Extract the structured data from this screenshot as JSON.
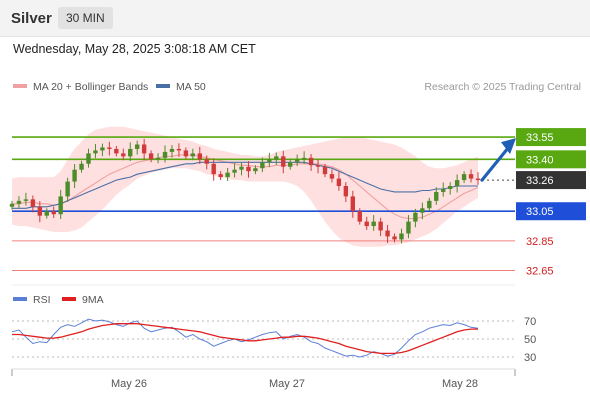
{
  "header": {
    "symbol": "Silver",
    "timeframe": "30 MIN"
  },
  "timestamp": "Wednesday, May 28, 2025 3:08:18 AM CET",
  "credit": "Research © 2025 Trading Central",
  "colors": {
    "up_candle": "#4c8c2a",
    "down_candle": "#d03a3a",
    "bollinger_fill": "#ffdada",
    "ma20": "#f0a0a0",
    "ma50": "#4a6fa5",
    "resistance": "#5aa811",
    "support_blue": "#1f4ed8",
    "support_red": "#f08080",
    "rsi": "#5b7fd6",
    "rsi_ma": "#e02020",
    "price_label": "#333333",
    "arrow": "#1f5fb5"
  },
  "chart_data": [
    {
      "type": "line",
      "panel": "price",
      "legend": [
        {
          "name": "MA 20 + Bollinger Bands",
          "color": "#f0a0a0"
        },
        {
          "name": "MA 50",
          "color": "#4a6fa5"
        }
      ],
      "x_ticks": [
        "May 26",
        "May 27",
        "May 28"
      ],
      "ylim": [
        32.62,
        33.8
      ],
      "current_price": 33.26,
      "levels": [
        {
          "value": 33.55,
          "label": "33.55",
          "kind": "resistance"
        },
        {
          "value": 33.4,
          "label": "33.40",
          "kind": "resistance"
        },
        {
          "value": 33.05,
          "label": "33.05",
          "kind": "pivot"
        },
        {
          "value": 32.85,
          "label": "32.85",
          "kind": "support"
        },
        {
          "value": 32.65,
          "label": "32.65",
          "kind": "support"
        }
      ],
      "forecast_target": 33.55,
      "close": [
        33.1,
        33.12,
        33.13,
        33.08,
        33.02,
        33.05,
        33.03,
        33.15,
        33.25,
        33.33,
        33.37,
        33.44,
        33.46,
        33.48,
        33.47,
        33.44,
        33.42,
        33.47,
        33.5,
        33.44,
        33.4,
        33.41,
        33.45,
        33.47,
        33.46,
        33.42,
        33.44,
        33.4,
        33.37,
        33.3,
        33.28,
        33.31,
        33.33,
        33.35,
        33.32,
        33.34,
        33.38,
        33.4,
        33.42,
        33.35,
        33.38,
        33.4,
        33.41,
        33.36,
        33.35,
        33.3,
        33.27,
        33.22,
        33.15,
        33.05,
        32.98,
        32.95,
        32.98,
        32.92,
        32.88,
        32.86,
        32.9,
        32.98,
        33.04,
        33.07,
        33.12,
        33.18,
        33.2,
        33.22,
        33.26,
        33.3,
        33.27,
        33.26
      ],
      "ma20": [
        33.1,
        33.1,
        33.11,
        33.11,
        33.1,
        33.1,
        33.09,
        33.1,
        33.12,
        33.15,
        33.18,
        33.21,
        33.24,
        33.27,
        33.3,
        33.32,
        33.34,
        33.36,
        33.38,
        33.39,
        33.4,
        33.41,
        33.42,
        33.42,
        33.43,
        33.43,
        33.43,
        33.42,
        33.41,
        33.4,
        33.39,
        33.38,
        33.37,
        33.36,
        33.36,
        33.35,
        33.35,
        33.35,
        33.36,
        33.36,
        33.36,
        33.37,
        33.37,
        33.37,
        33.37,
        33.36,
        33.35,
        33.33,
        33.3,
        33.26,
        33.22,
        33.18,
        33.14,
        33.1,
        33.06,
        33.03,
        33.01,
        33.0,
        33.0,
        33.01,
        33.03,
        33.05,
        33.08,
        33.11,
        33.14,
        33.17,
        33.19,
        33.21
      ],
      "ma50": [
        33.07,
        33.07,
        33.07,
        33.08,
        33.08,
        33.08,
        33.09,
        33.1,
        33.12,
        33.14,
        33.16,
        33.18,
        33.2,
        33.22,
        33.24,
        33.26,
        33.27,
        33.28,
        33.3,
        33.31,
        33.32,
        33.33,
        33.34,
        33.35,
        33.36,
        33.37,
        33.37,
        33.38,
        33.38,
        33.38,
        33.38,
        33.38,
        33.38,
        33.38,
        33.38,
        33.38,
        33.38,
        33.38,
        33.38,
        33.38,
        33.38,
        33.38,
        33.38,
        33.37,
        33.36,
        33.35,
        33.34,
        33.32,
        33.3,
        33.28,
        33.26,
        33.24,
        33.22,
        33.2,
        33.19,
        33.18,
        33.18,
        33.18,
        33.18,
        33.19,
        33.19,
        33.2,
        33.2,
        33.21,
        33.22,
        33.22,
        33.22,
        33.22
      ],
      "bb_upper": [
        33.27,
        33.28,
        33.28,
        33.28,
        33.28,
        33.28,
        33.28,
        33.32,
        33.4,
        33.47,
        33.52,
        33.57,
        33.6,
        33.61,
        33.62,
        33.62,
        33.62,
        33.61,
        33.6,
        33.59,
        33.58,
        33.57,
        33.56,
        33.55,
        33.54,
        33.53,
        33.52,
        33.5,
        33.49,
        33.47,
        33.46,
        33.45,
        33.44,
        33.43,
        33.43,
        33.42,
        33.42,
        33.43,
        33.45,
        33.46,
        33.47,
        33.48,
        33.49,
        33.5,
        33.51,
        33.52,
        33.53,
        33.54,
        33.55,
        33.55,
        33.55,
        33.54,
        33.53,
        33.52,
        33.51,
        33.5,
        33.48,
        33.45,
        33.42,
        33.38,
        33.35,
        33.34,
        33.34,
        33.35,
        33.36,
        33.38,
        33.4,
        33.42
      ],
      "bb_lower": [
        32.96,
        32.95,
        32.95,
        32.94,
        32.93,
        32.92,
        32.91,
        32.91,
        32.91,
        32.92,
        32.94,
        32.98,
        33.02,
        33.06,
        33.11,
        33.16,
        33.2,
        33.23,
        33.27,
        33.29,
        33.31,
        33.32,
        33.33,
        33.34,
        33.34,
        33.34,
        33.33,
        33.32,
        33.3,
        33.29,
        33.28,
        33.27,
        33.26,
        33.26,
        33.25,
        33.25,
        33.25,
        33.25,
        33.25,
        33.25,
        33.24,
        33.22,
        33.18,
        33.12,
        33.05,
        32.98,
        32.92,
        32.87,
        32.84,
        32.82,
        32.81,
        32.81,
        32.81,
        32.81,
        32.82,
        32.82,
        32.83,
        32.84,
        32.86,
        32.88,
        32.9,
        32.93,
        32.97,
        33.01,
        33.05,
        33.08,
        33.11,
        33.14
      ]
    },
    {
      "type": "line",
      "panel": "rsi",
      "legend": [
        {
          "name": "RSI",
          "color": "#5b7fd6"
        },
        {
          "name": "9MA",
          "color": "#e02020"
        }
      ],
      "ylim": [
        20,
        80
      ],
      "y_ticks": [
        70,
        50,
        30
      ],
      "rsi": [
        58,
        60,
        52,
        45,
        47,
        46,
        55,
        63,
        66,
        64,
        68,
        72,
        70,
        71,
        69,
        66,
        64,
        68,
        70,
        62,
        58,
        60,
        62,
        63,
        58,
        52,
        55,
        50,
        47,
        42,
        45,
        48,
        50,
        47,
        49,
        52,
        55,
        57,
        58,
        50,
        53,
        55,
        52,
        47,
        45,
        40,
        37,
        34,
        31,
        32,
        30,
        32,
        36,
        34,
        31,
        33,
        40,
        48,
        55,
        58,
        62,
        64,
        66,
        65,
        68,
        66,
        63,
        62
      ],
      "rsi_ma": [
        55,
        55,
        54,
        53,
        52,
        51,
        51,
        52,
        54,
        56,
        58,
        61,
        63,
        65,
        66,
        67,
        67,
        67,
        67,
        66,
        65,
        64,
        63,
        62,
        61,
        60,
        59,
        58,
        56,
        54,
        52,
        51,
        50,
        49,
        48,
        48,
        49,
        50,
        51,
        52,
        52,
        53,
        53,
        52,
        51,
        49,
        47,
        45,
        42,
        40,
        38,
        36,
        35,
        34,
        34,
        34,
        35,
        37,
        40,
        43,
        46,
        49,
        52,
        55,
        58,
        60,
        61,
        61
      ]
    }
  ]
}
